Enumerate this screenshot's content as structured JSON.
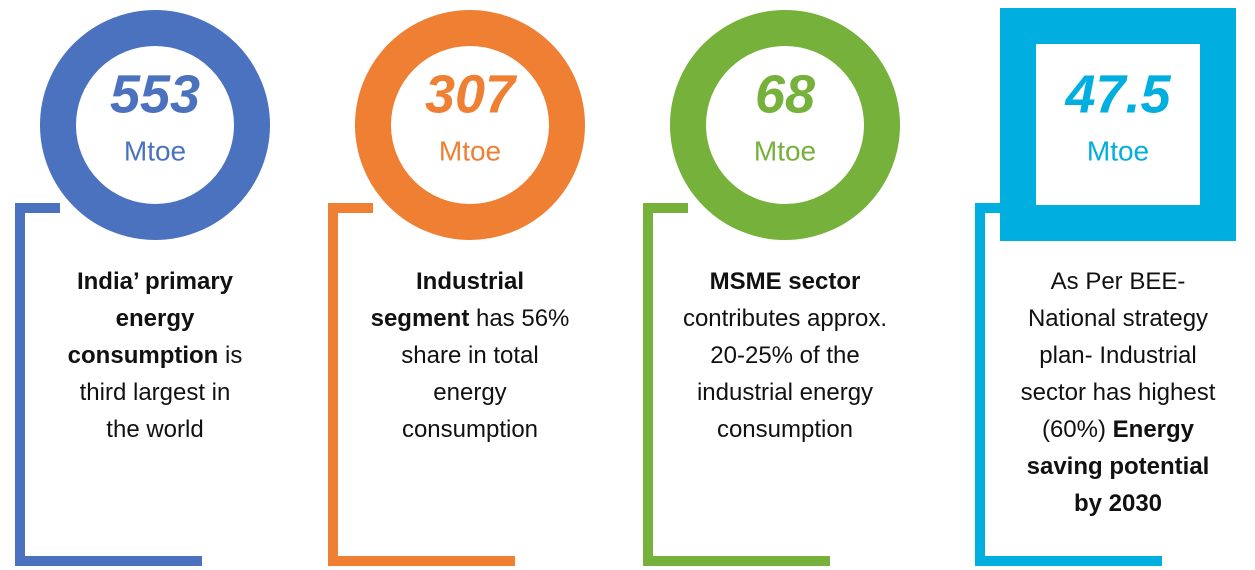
{
  "cards": [
    {
      "value": "553",
      "unit": "Mtoe",
      "color": "#4a72bf",
      "shape": "circle",
      "lines": [
        [
          {
            "text": "India’ primary",
            "bold": true
          }
        ],
        [
          {
            "text": "energy",
            "bold": true
          }
        ],
        [
          {
            "text": "consumption",
            "bold": true
          },
          {
            "text": " is",
            "bold": false
          }
        ],
        [
          {
            "text": "third largest in",
            "bold": false
          }
        ],
        [
          {
            "text": "the world",
            "bold": false
          }
        ]
      ]
    },
    {
      "value": "307",
      "unit": "Mtoe",
      "color": "#ee7f33",
      "shape": "circle",
      "lines": [
        [
          {
            "text": "Industrial",
            "bold": true
          }
        ],
        [
          {
            "text": "segment",
            "bold": true
          },
          {
            "text": " has 56%",
            "bold": false
          }
        ],
        [
          {
            "text": "share in total",
            "bold": false
          }
        ],
        [
          {
            "text": "energy",
            "bold": false
          }
        ],
        [
          {
            "text": "consumption",
            "bold": false
          }
        ]
      ]
    },
    {
      "value": "68",
      "unit": "Mtoe",
      "color": "#75b13b",
      "shape": "circle",
      "lines": [
        [
          {
            "text": "MSME sector",
            "bold": true
          }
        ],
        [
          {
            "text": "contributes approx.",
            "bold": false
          }
        ],
        [
          {
            "text": "20-25% of the",
            "bold": false
          }
        ],
        [
          {
            "text": "industrial energy",
            "bold": false
          }
        ],
        [
          {
            "text": "consumption",
            "bold": false
          }
        ]
      ]
    },
    {
      "value": "47.5",
      "unit": "Mtoe",
      "color": "#00aedf",
      "shape": "square",
      "lines": [
        [
          {
            "text": "As Per BEE-",
            "bold": false
          }
        ],
        [
          {
            "text": "National strategy",
            "bold": false
          }
        ],
        [
          {
            "text": "plan- Industrial",
            "bold": false
          }
        ],
        [
          {
            "text": "sector has highest",
            "bold": false
          }
        ],
        [
          {
            "text": "(60%) ",
            "bold": false
          },
          {
            "text": "Energy",
            "bold": true
          }
        ],
        [
          {
            "text": "saving potential",
            "bold": true
          }
        ],
        [
          {
            "text": "by 2030",
            "bold": true
          }
        ]
      ]
    }
  ]
}
